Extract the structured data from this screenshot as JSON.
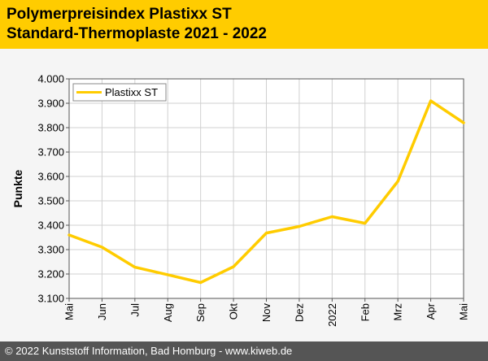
{
  "header": {
    "title_line1": "Polymerpreisindex Plastixx ST",
    "title_line2": "Standard-Thermoplaste 2021 - 2022"
  },
  "footer": {
    "text": "© 2022 Kunststoff Information, Bad Homburg - www.kiweb.de"
  },
  "colors": {
    "header_bg": "#ffcc00",
    "line": "#ffcc00",
    "footer_bg": "#555555"
  },
  "chart_data": {
    "type": "line",
    "ylabel": "Punkte",
    "ylim": [
      3100,
      4000
    ],
    "yticks": [
      3100,
      3200,
      3300,
      3400,
      3500,
      3600,
      3700,
      3800,
      3900,
      4000
    ],
    "ytick_labels": [
      "3.100",
      "3.200",
      "3.300",
      "3.400",
      "3.500",
      "3.600",
      "3.700",
      "3.800",
      "3.900",
      "4.000"
    ],
    "categories": [
      "Mai",
      "Jun",
      "Jul",
      "Aug",
      "Sep",
      "Okt",
      "Nov",
      "Dez",
      "2022",
      "Feb",
      "Mrz",
      "Apr",
      "Mai"
    ],
    "grid": true,
    "legend_position": "top-left",
    "series": [
      {
        "name": "Plastixx ST",
        "values": [
          3360,
          3310,
          3228,
          3197,
          3165,
          3230,
          3368,
          3395,
          3435,
          3408,
          3580,
          3910,
          3820
        ]
      }
    ]
  }
}
